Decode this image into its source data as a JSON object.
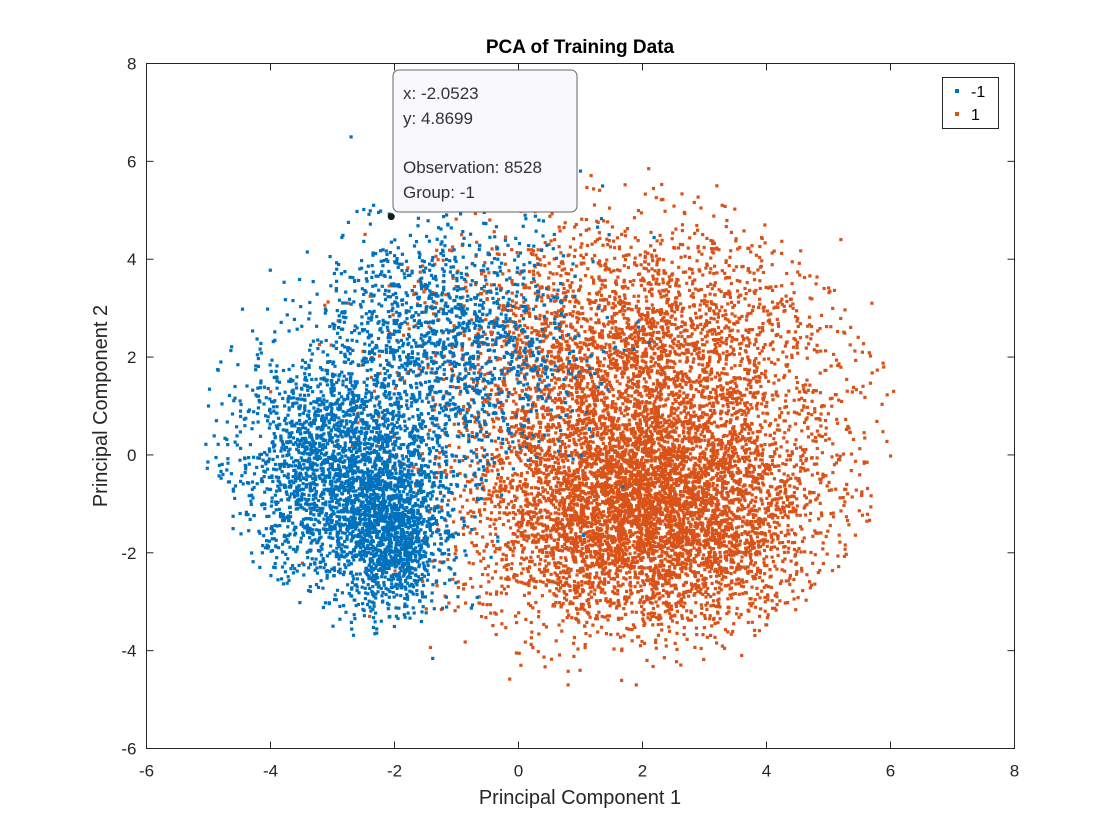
{
  "chart_data": {
    "type": "scatter",
    "title": "PCA of Training Data",
    "xlabel": "Principal Component 1",
    "ylabel": "Principal Component 2",
    "xlim": [
      -6,
      8
    ],
    "ylim": [
      -6,
      8
    ],
    "xticks": [
      "-6",
      "-4",
      "-2",
      "0",
      "2",
      "4",
      "6",
      "8"
    ],
    "yticks": [
      "-6",
      "-4",
      "-2",
      "0",
      "2",
      "4",
      "6",
      "8"
    ],
    "grid": false,
    "legend_position": "top-right",
    "series": [
      {
        "name": "-1",
        "color": "#0072BD",
        "approx_points": 5000,
        "clusters": [
          {
            "cx": -2.9,
            "cy": -0.3,
            "sx": 0.85,
            "sy": 1.2,
            "weight": 0.45
          },
          {
            "cx": -2.1,
            "cy": -1.6,
            "sx": 0.45,
            "sy": 0.75,
            "weight": 0.25
          },
          {
            "cx": -1.3,
            "cy": 2.2,
            "sx": 1.1,
            "sy": 1.35,
            "weight": 0.3
          }
        ],
        "sample_points": [
          {
            "x": -5.0,
            "y": 1.0
          },
          {
            "x": -4.8,
            "y": 1.9
          },
          {
            "x": -4.6,
            "y": -0.7
          },
          {
            "x": -3.9,
            "y": -2.1
          },
          {
            "x": -2.7,
            "y": 6.5
          },
          {
            "x": -2.05,
            "y": 4.87
          },
          {
            "x": 0.5,
            "y": 6.0
          },
          {
            "x": 1.0,
            "y": 5.8
          },
          {
            "x": -2.5,
            "y": -2.6
          },
          {
            "x": -3.4,
            "y": 1.4
          },
          {
            "x": -2.2,
            "y": -1.0
          },
          {
            "x": -1.0,
            "y": 3.0
          }
        ]
      },
      {
        "name": "1",
        "color": "#D95319",
        "approx_points": 9000,
        "clusters": [
          {
            "cx": 2.1,
            "cy": -1.2,
            "sx": 1.35,
            "sy": 1.15,
            "weight": 0.6
          },
          {
            "cx": 1.8,
            "cy": 1.8,
            "sx": 1.65,
            "sy": 1.45,
            "weight": 0.4
          }
        ],
        "sample_points": [
          {
            "x": 6.05,
            "y": 1.3
          },
          {
            "x": 5.7,
            "y": 3.1
          },
          {
            "x": 5.2,
            "y": 4.4
          },
          {
            "x": 1.9,
            "y": -4.7
          },
          {
            "x": 0.8,
            "y": -4.7
          },
          {
            "x": 3.6,
            "y": -4.1
          },
          {
            "x": 2.1,
            "y": 5.85
          },
          {
            "x": 3.2,
            "y": 5.5
          },
          {
            "x": -2.4,
            "y": -3.3
          },
          {
            "x": 4.6,
            "y": 1.0
          },
          {
            "x": 3.0,
            "y": -2.2
          },
          {
            "x": 0.5,
            "y": 0.0
          }
        ]
      }
    ],
    "datatip": {
      "x_value": -2.0523,
      "y_value": 4.8699,
      "line_x": "x: -2.0523",
      "line_y": "y: 4.8699",
      "line_obs": "Observation: 8528",
      "line_group": "Group: -1"
    }
  }
}
